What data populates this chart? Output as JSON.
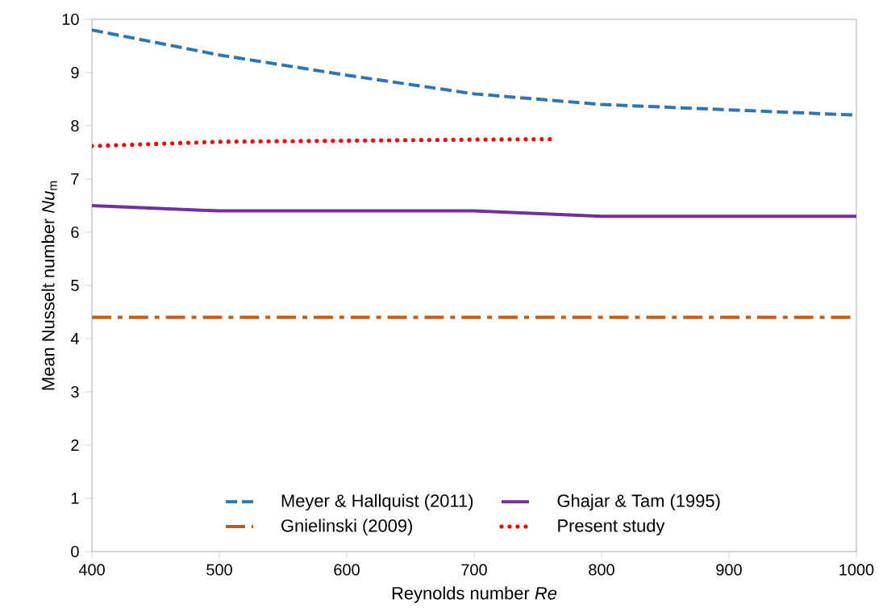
{
  "chart_data": {
    "type": "line",
    "xlabel": "Reynolds number *Re*",
    "ylabel": "Mean Nusselt number *Nu*$_{m}$",
    "xlim": [
      400,
      1000
    ],
    "xticks": [
      400,
      500,
      600,
      700,
      800,
      900,
      1000
    ],
    "ylim": [
      0,
      10
    ],
    "yticks": [
      0,
      1,
      2,
      3,
      4,
      5,
      6,
      7,
      8,
      9,
      10
    ],
    "grid": false,
    "legend": "bottom",
    "marker": "none",
    "series": [
      {
        "name": "Meyer & Hallquist (2011)",
        "color": "#2e75b6",
        "line_style": "dashed",
        "x": [
          400,
          500,
          600,
          700,
          800,
          900,
          1000
        ],
        "values": [
          9.8,
          9.33,
          8.95,
          8.6,
          8.4,
          8.3,
          8.2
        ]
      },
      {
        "name": "Ghajar & Tam (1995)",
        "color": "#7030a0",
        "line_style": "solid",
        "x": [
          400,
          500,
          600,
          700,
          800,
          900,
          1000
        ],
        "values": [
          6.5,
          6.4,
          6.4,
          6.4,
          6.3,
          6.3,
          6.3
        ]
      },
      {
        "name": "Gnielinski (2009)",
        "color": "#c55a11",
        "line_style": "dashdot",
        "x": [
          400,
          500,
          600,
          700,
          800,
          900,
          1000
        ],
        "values": [
          4.4,
          4.4,
          4.4,
          4.4,
          4.4,
          4.4,
          4.4
        ]
      },
      {
        "name": "Present study",
        "color": "#ff0000",
        "line_style": "dotted",
        "x": [
          400,
          500,
          600,
          700,
          760
        ],
        "values": [
          7.62,
          7.7,
          7.72,
          7.74,
          7.75
        ]
      }
    ]
  }
}
